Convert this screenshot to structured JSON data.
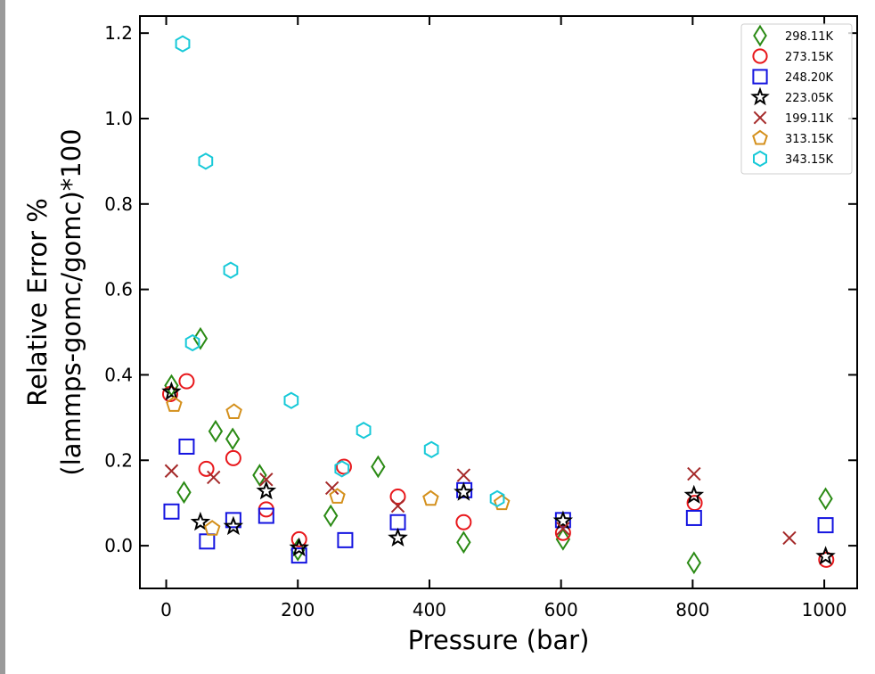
{
  "chart_data": {
    "type": "scatter",
    "xlabel": "Pressure (bar)",
    "ylabel": [
      "Relative Error %",
      "(lammps-gomc/gomc)*100"
    ],
    "xlim": [
      -40,
      1050
    ],
    "ylim": [
      -0.1,
      1.24
    ],
    "xticks": [
      0,
      200,
      400,
      600,
      800,
      1000
    ],
    "xtick_labels": [
      "0",
      "200",
      "400",
      "600",
      "800",
      "1000"
    ],
    "yticks": [
      0.0,
      0.2,
      0.4,
      0.6,
      0.8,
      1.0,
      1.2
    ],
    "ytick_labels": [
      "0.0",
      "0.2",
      "0.4",
      "0.6",
      "0.8",
      "1.0",
      "1.2"
    ],
    "grid": false,
    "legend_position": "top-right",
    "series": [
      {
        "name": "298.11K",
        "marker": "thin_diamond",
        "color": "#2a8a14",
        "x": [
          8,
          27,
          52,
          75,
          101,
          142,
          200,
          250,
          322,
          452,
          603,
          802,
          1002
        ],
        "y": [
          0.375,
          0.125,
          0.485,
          0.268,
          0.25,
          0.165,
          -0.01,
          0.07,
          0.185,
          0.008,
          0.015,
          -0.04,
          0.11
        ]
      },
      {
        "name": "273.15K",
        "marker": "circle",
        "color": "#e8171b",
        "x": [
          6,
          31,
          61,
          102,
          152,
          202,
          270,
          352,
          452,
          603,
          803,
          1003
        ],
        "y": [
          0.355,
          0.385,
          0.18,
          0.205,
          0.085,
          0.015,
          0.185,
          0.115,
          0.055,
          0.03,
          0.1,
          -0.033
        ]
      },
      {
        "name": "248.20K",
        "marker": "square",
        "color": "#1414e0",
        "x": [
          8,
          31,
          62,
          102,
          152,
          202,
          272,
          352,
          453,
          603,
          802,
          1002
        ],
        "y": [
          0.08,
          0.232,
          0.01,
          0.06,
          0.07,
          -0.023,
          0.013,
          0.055,
          0.13,
          0.06,
          0.065,
          0.048
        ]
      },
      {
        "name": "223.05K",
        "marker": "star",
        "color": "#000000",
        "x": [
          8,
          52,
          102,
          152,
          202,
          352,
          452,
          603,
          802,
          1002
        ],
        "y": [
          0.36,
          0.055,
          0.045,
          0.128,
          -0.005,
          0.018,
          0.125,
          0.058,
          0.118,
          -0.025
        ]
      },
      {
        "name": "199.11K",
        "marker": "x",
        "color": "#a52a2a",
        "x": [
          8,
          72,
          152,
          252,
          352,
          452,
          603,
          802,
          947
        ],
        "y": [
          0.175,
          0.16,
          0.155,
          0.135,
          0.093,
          0.165,
          0.04,
          0.168,
          0.018
        ]
      },
      {
        "name": "313.15K",
        "marker": "pentagon",
        "color": "#d4901c",
        "x": [
          12,
          70,
          103,
          260,
          402,
          510
        ],
        "y": [
          0.33,
          0.04,
          0.313,
          0.115,
          0.11,
          0.1
        ]
      },
      {
        "name": "343.15K",
        "marker": "hexagon",
        "color": "#17c9d8",
        "x": [
          25,
          60,
          98,
          40,
          190,
          267,
          300,
          403,
          503
        ],
        "y": [
          1.175,
          0.9,
          0.645,
          0.475,
          0.34,
          0.18,
          0.27,
          0.225,
          0.11
        ]
      }
    ]
  }
}
